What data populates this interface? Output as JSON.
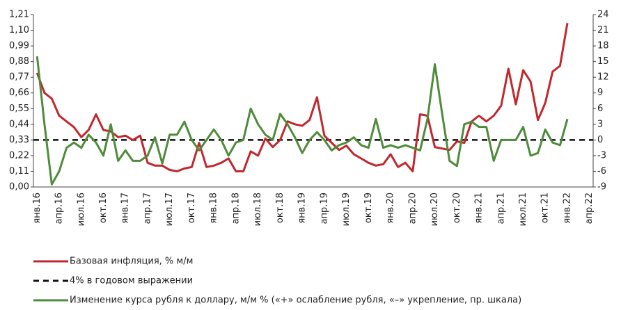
{
  "chart_data": {
    "type": "line",
    "categories": [
      "янв.16",
      null,
      null,
      "апр.16",
      null,
      null,
      "июл.16",
      null,
      null,
      "окт.16",
      null,
      null,
      "янв.17",
      null,
      null,
      "апр.17",
      null,
      null,
      "июл.17",
      null,
      null,
      "окт.17",
      null,
      null,
      "янв.18",
      null,
      null,
      "апр.18",
      null,
      null,
      "июл.18",
      null,
      null,
      "окт.18",
      null,
      null,
      "янв.19",
      null,
      null,
      "апр.19",
      null,
      null,
      "июл.19",
      null,
      null,
      "окт.19",
      null,
      null,
      "янв.20",
      null,
      null,
      "апр.20",
      null,
      null,
      "июл.20",
      null,
      null,
      "окт.20",
      null,
      null,
      "янв.21",
      null,
      null,
      "апр.21",
      null,
      null,
      "июл.21",
      null,
      null,
      "окт.21",
      null,
      null,
      "янв.22",
      null,
      null,
      "апр.22"
    ],
    "series": [
      {
        "name": "Базовая инфляция, % м/м",
        "color": "#c0282d",
        "axis": "y",
        "values": [
          0.8,
          0.66,
          0.62,
          0.5,
          0.46,
          0.42,
          0.35,
          0.4,
          0.51,
          0.4,
          0.39,
          0.35,
          0.36,
          0.33,
          0.36,
          0.17,
          0.15,
          0.15,
          0.12,
          0.11,
          0.13,
          0.14,
          0.31,
          0.14,
          0.15,
          0.17,
          0.2,
          0.11,
          0.11,
          0.25,
          0.22,
          0.34,
          0.28,
          0.33,
          0.46,
          0.44,
          0.43,
          0.47,
          0.63,
          0.36,
          0.31,
          0.26,
          0.29,
          0.23,
          0.2,
          0.17,
          0.15,
          0.16,
          0.23,
          0.14,
          0.17,
          0.11,
          0.51,
          0.5,
          0.28,
          0.27,
          0.26,
          0.32,
          0.31,
          0.46,
          0.5,
          0.46,
          0.5,
          0.57,
          0.83,
          0.58,
          0.82,
          0.74,
          0.47,
          0.59,
          0.81,
          0.85,
          1.15,
          null,
          null,
          null
        ]
      },
      {
        "name": "Изменение курса рубля к доллару, м/м % («+» ослабление рубля, «–» укрепление, пр. шкала)",
        "color": "#4e8b3a",
        "axis": "y2",
        "values": [
          16,
          3,
          -8.5,
          -6,
          -1.5,
          -0.5,
          -1.5,
          1,
          -0.5,
          -3,
          3,
          -4,
          -2,
          -4,
          -4,
          -3,
          0.5,
          -4.5,
          1,
          1,
          3.5,
          0,
          -2,
          0,
          2,
          0,
          -3,
          -0.5,
          0,
          6,
          3,
          1,
          0,
          5,
          3,
          0.5,
          -2.5,
          0,
          1.5,
          0,
          -2,
          -1,
          -0.5,
          0.5,
          -1,
          -1.5,
          4,
          -1.5,
          -1,
          -1.5,
          -1,
          -1.5,
          -2,
          4,
          14.5,
          5,
          -4,
          -5,
          3,
          3.5,
          2.5,
          2.5,
          -4,
          0,
          0,
          0,
          2.5,
          -3,
          -2.5,
          2,
          -0.5,
          -1,
          4,
          null,
          null,
          null
        ]
      }
    ],
    "reference_line": {
      "value": 0.33,
      "label": "4% в годовом выражении"
    },
    "ylim": [
      0,
      1.21
    ],
    "yticks": [
      {
        "value": 0,
        "label": "0,00"
      },
      {
        "value": 0.11,
        "label": "0,11"
      },
      {
        "value": 0.22,
        "label": "0,22"
      },
      {
        "value": 0.33,
        "label": "0,33"
      },
      {
        "value": 0.44,
        "label": "0,44"
      },
      {
        "value": 0.55,
        "label": "0,55"
      },
      {
        "value": 0.66,
        "label": "0,66"
      },
      {
        "value": 0.77,
        "label": "0,77"
      },
      {
        "value": 0.88,
        "label": "0,88"
      },
      {
        "value": 0.99,
        "label": "0,99"
      },
      {
        "value": 1.1,
        "label": "1,10"
      },
      {
        "value": 1.21,
        "label": "1,21"
      }
    ],
    "y2lim": [
      -9,
      24
    ],
    "y2ticks": [
      -9,
      -6,
      -3,
      0,
      3,
      6,
      9,
      12,
      15,
      18,
      21,
      24
    ]
  }
}
